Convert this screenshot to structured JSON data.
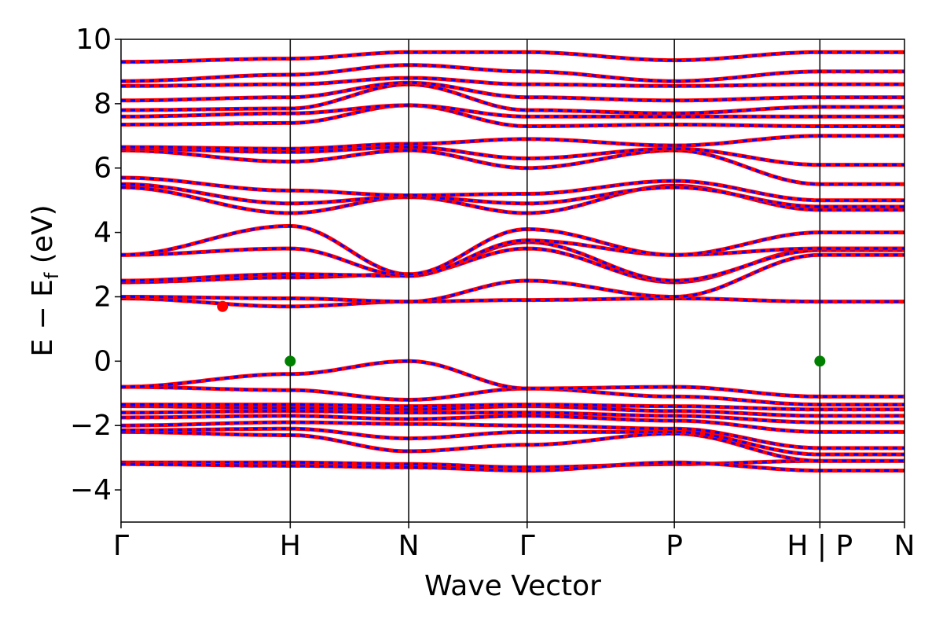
{
  "chart_data": {
    "type": "line",
    "xlabel": "Wave Vector",
    "ylabel": "E − E",
    "ylabel_sub": "f",
    "ylabel_unit": " (eV)",
    "ylim": [
      -5,
      10
    ],
    "yticks": [
      {
        "value": 10,
        "label": "10"
      },
      {
        "value": 8,
        "label": "8"
      },
      {
        "value": 6,
        "label": "6"
      },
      {
        "value": 4,
        "label": "4"
      },
      {
        "value": 2,
        "label": "2"
      },
      {
        "value": 0,
        "label": "0"
      },
      {
        "value": -2,
        "label": "−2"
      },
      {
        "value": -4,
        "label": "−4"
      }
    ],
    "xticks": [
      {
        "pos": 0,
        "label": "Γ"
      },
      {
        "pos": 1,
        "label": "H"
      },
      {
        "pos": 1.7,
        "label": "N"
      },
      {
        "pos": 2.4,
        "label": "Γ"
      },
      {
        "pos": 3.27,
        "label": "P"
      },
      {
        "pos": 4.13,
        "label": "H | P"
      },
      {
        "pos": 4.63,
        "label": "N"
      }
    ],
    "xlim": [
      0,
      4.63
    ],
    "segments": [
      {
        "x0": 0,
        "x1": 1
      },
      {
        "x0": 1,
        "x1": 1.7
      },
      {
        "x0": 1.7,
        "x1": 2.4
      },
      {
        "x0": 2.4,
        "x1": 3.27
      },
      {
        "x0": 3.27,
        "x1": 4.13
      },
      {
        "x0": 4.13,
        "x1": 4.63
      }
    ],
    "series_style": {
      "color1": "#ff0000",
      "color2": "#0000ff"
    },
    "bands": [
      [
        -3.15,
        -3.15,
        -3.2,
        -3.3,
        -3.2,
        -3.1
      ],
      [
        -3.2,
        -3.25,
        -3.3,
        -3.4,
        -3.15,
        -3.4
      ],
      [
        -2.2,
        -2.3,
        -2.8,
        -2.6,
        -2.25,
        -3.1
      ],
      [
        -2.15,
        -2.1,
        -2.4,
        -2.2,
        -2.2,
        -2.9
      ],
      [
        -2.0,
        -1.9,
        -1.95,
        -2.0,
        -2.1,
        -2.7
      ],
      [
        -1.75,
        -1.7,
        -1.8,
        -1.7,
        -1.85,
        -2.2
      ],
      [
        -1.6,
        -1.55,
        -1.6,
        -1.6,
        -1.7,
        -1.9
      ],
      [
        -1.4,
        -1.45,
        -1.5,
        -1.4,
        -1.55,
        -1.7
      ],
      [
        -1.35,
        -1.35,
        -1.4,
        -1.35,
        -1.4,
        -1.5
      ],
      [
        -0.8,
        -0.9,
        -1.2,
        -0.85,
        -1.1,
        -1.35
      ],
      [
        -0.8,
        -0.4,
        0.0,
        -0.85,
        -0.8,
        -1.1
      ],
      [
        1.95,
        1.7,
        1.85,
        1.9,
        1.95,
        1.85
      ],
      [
        2.0,
        1.95,
        1.85,
        2.5,
        2.0,
        3.3
      ],
      [
        2.45,
        2.6,
        2.7,
        3.5,
        2.45,
        3.5
      ],
      [
        2.5,
        2.7,
        2.65,
        3.7,
        2.5,
        3.45
      ],
      [
        3.3,
        3.5,
        2.65,
        3.75,
        3.3,
        3.5
      ],
      [
        3.3,
        4.2,
        2.7,
        4.1,
        3.3,
        4.0
      ],
      [
        5.4,
        4.6,
        5.1,
        4.6,
        5.45,
        4.7
      ],
      [
        5.5,
        4.9,
        5.1,
        4.9,
        5.4,
        4.8
      ],
      [
        5.7,
        5.3,
        5.15,
        5.2,
        5.6,
        5.0
      ],
      [
        6.55,
        6.2,
        6.55,
        6.0,
        6.55,
        5.5
      ],
      [
        6.6,
        6.5,
        6.65,
        6.3,
        6.6,
        6.1
      ],
      [
        6.65,
        6.6,
        6.75,
        6.9,
        6.7,
        7.0
      ],
      [
        7.35,
        7.4,
        7.95,
        7.3,
        7.35,
        7.3
      ],
      [
        7.6,
        7.7,
        7.95,
        7.6,
        7.6,
        7.6
      ],
      [
        7.8,
        7.85,
        8.6,
        7.8,
        7.7,
        7.9
      ],
      [
        8.1,
        8.2,
        8.65,
        8.2,
        8.1,
        8.2
      ],
      [
        8.55,
        8.6,
        8.8,
        8.6,
        8.55,
        8.6
      ],
      [
        8.7,
        8.9,
        9.2,
        9.0,
        8.7,
        9.0
      ],
      [
        9.3,
        9.4,
        9.6,
        9.6,
        9.35,
        9.6
      ]
    ],
    "markers": [
      {
        "x": 0.6,
        "y": 1.7,
        "color": "#ff0000"
      },
      {
        "x": 1,
        "y": 0,
        "color": "#008000"
      },
      {
        "x": 4.13,
        "y": 0,
        "color": "#008000"
      }
    ]
  }
}
